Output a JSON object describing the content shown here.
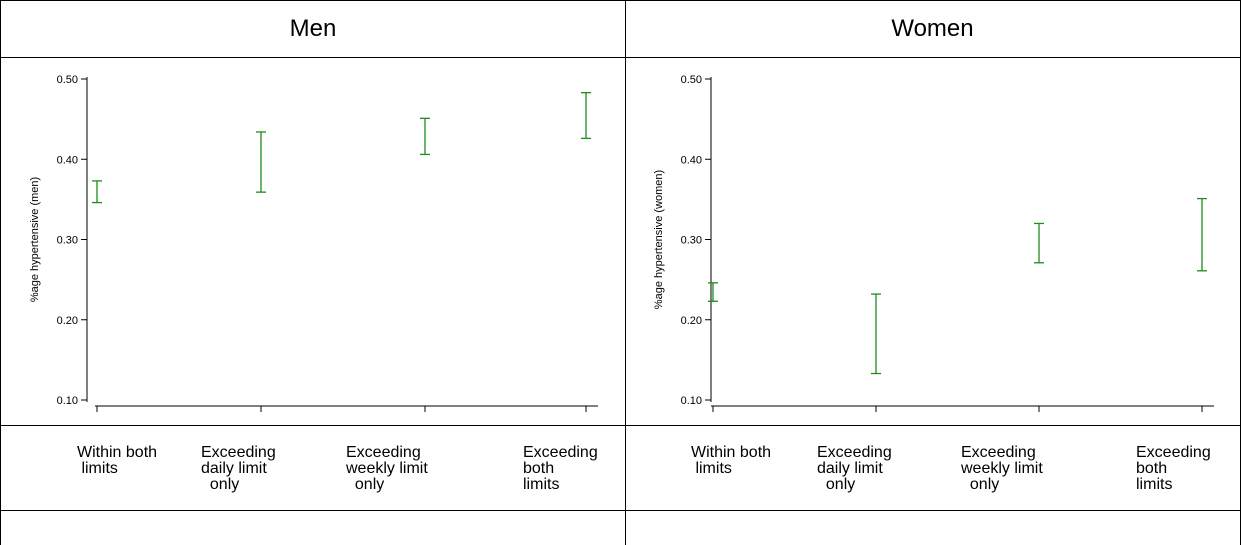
{
  "panels": [
    {
      "title": "Men",
      "chart_data": {
        "type": "errorbar",
        "ylabel": "%age hypertensive (men)",
        "ylim": [
          0.1,
          0.5
        ],
        "yticks": [
          "0.10",
          "0.20",
          "0.30",
          "0.40",
          "0.50"
        ],
        "color": "#1e8c1e",
        "categories": [
          "Within both limits",
          "Exceeding daily limit only",
          "Exceeding weekly limit only",
          "Exceeding both limits"
        ],
        "category_labels": [
          "Within both\n limits",
          "Exceeding\ndaily limit\n  only",
          "Exceeding\nweekly limit\n  only",
          "Exceeding\nboth\nlimits"
        ],
        "lower": [
          0.346,
          0.359,
          0.406,
          0.426
        ],
        "upper": [
          0.373,
          0.434,
          0.451,
          0.483
        ]
      }
    },
    {
      "title": "Women",
      "chart_data": {
        "type": "errorbar",
        "ylabel": "%age hypertensive (women)",
        "ylim": [
          0.1,
          0.5
        ],
        "yticks": [
          "0.10",
          "0.20",
          "0.30",
          "0.40",
          "0.50"
        ],
        "color": "#1e8c1e",
        "categories": [
          "Within both limits",
          "Exceeding daily limit only",
          "Exceeding weekly limit only",
          "Exceeding both limits"
        ],
        "category_labels": [
          "Within both\n limits",
          "Exceeding\ndaily limit\n  only",
          "Exceeding\nweekly limit\n  only",
          "Exceeding\nboth\nlimits"
        ],
        "lower": [
          0.223,
          0.133,
          0.271,
          0.261
        ],
        "upper": [
          0.246,
          0.232,
          0.32,
          0.351
        ]
      }
    }
  ]
}
